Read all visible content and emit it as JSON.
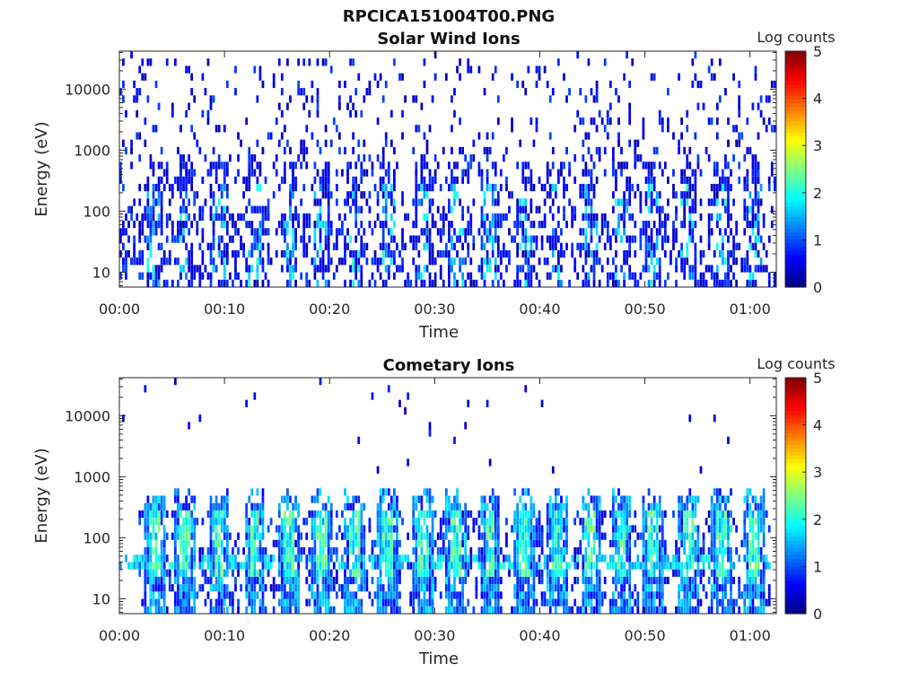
{
  "figure_title": "RPCICA151004T00.PNG",
  "chart_data": [
    {
      "type": "heatmap",
      "title": "Solar Wind Ions",
      "xlabel": "Time",
      "ylabel": "Energy (eV)",
      "y_scale": "log",
      "ylim": [
        5.7,
        42000
      ],
      "y_ticks": [
        10,
        100,
        1000,
        10000
      ],
      "y_tick_labels": [
        "10",
        "100",
        "1000",
        "10000"
      ],
      "x_unit": "minutes since 00:00",
      "xlim": [
        0,
        62.5
      ],
      "x_ticks": [
        0,
        10,
        20,
        30,
        40,
        50,
        60
      ],
      "x_tick_labels": [
        "00:00",
        "00:10",
        "00:20",
        "00:30",
        "00:40",
        "00:50",
        "01:00"
      ],
      "colorbar": {
        "label": "Log counts",
        "range": [
          0,
          5
        ],
        "ticks": [
          "0",
          "1",
          "2",
          "3",
          "4",
          "5"
        ],
        "colormap": "jet"
      },
      "description_pattern": "sparse low counts (0-1 log) scattered across 10 eV - 30 keV, denser below 100 eV",
      "burst_times_min": [
        3.3,
        6.3,
        9.5,
        12.9,
        16.1,
        19.2,
        22.4,
        25.6,
        28.9,
        32.1,
        35.3,
        38.6,
        41.7,
        44.9,
        47.8,
        50.8,
        54.1,
        57.3,
        60.5
      ]
    },
    {
      "type": "heatmap",
      "title": "Cometary Ions",
      "xlabel": "Time",
      "ylabel": "Energy (eV)",
      "y_scale": "log",
      "ylim": [
        5.7,
        42000
      ],
      "y_ticks": [
        10,
        100,
        1000,
        10000
      ],
      "y_tick_labels": [
        "10",
        "100",
        "1000",
        "10000"
      ],
      "x_unit": "minutes since 00:00",
      "xlim": [
        0,
        62.5
      ],
      "x_ticks": [
        0,
        10,
        20,
        30,
        40,
        50,
        60
      ],
      "x_tick_labels": [
        "00:00",
        "00:10",
        "00:20",
        "00:30",
        "00:40",
        "00:50",
        "01:00"
      ],
      "colorbar": {
        "label": "Log counts",
        "range": [
          0,
          5
        ],
        "ticks": [
          "0",
          "1",
          "2",
          "3",
          "4",
          "5"
        ],
        "colormap": "jet"
      },
      "description_pattern": "periodic bursts spanning ~10 eV - 700 eV with peak log counts ~2.5 near 30-200 eV, plus a persistent band near 40 eV",
      "burst_times_min": [
        3.3,
        6.3,
        9.5,
        12.9,
        16.1,
        19.2,
        22.4,
        25.6,
        28.9,
        32.1,
        35.3,
        38.6,
        41.7,
        44.9,
        47.8,
        50.8,
        54.1,
        57.3,
        60.5
      ]
    }
  ]
}
